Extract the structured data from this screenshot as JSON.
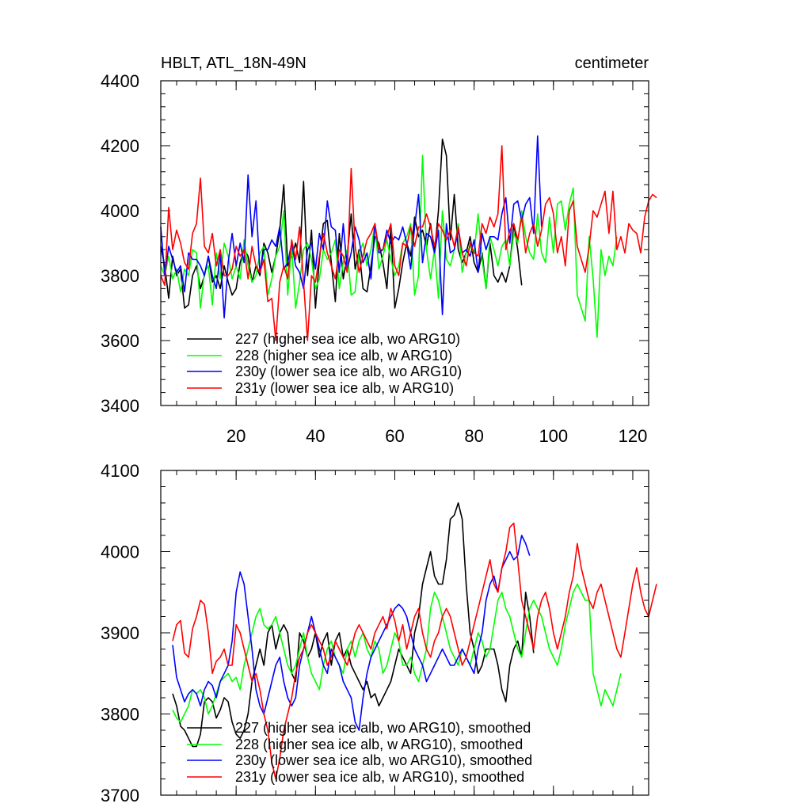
{
  "colors": {
    "s227": "#000000",
    "s228": "#00ff00",
    "s230y": "#0000ff",
    "s231y": "#ff0000"
  },
  "chart_data": [
    {
      "type": "line",
      "title": "HBLT, ATL_18N-49N",
      "units": "centimeter",
      "xlabel": "",
      "ylabel": "",
      "xlim": [
        1,
        124
      ],
      "ylim": [
        3400,
        4400
      ],
      "xticks": [
        20,
        40,
        60,
        80,
        100,
        120
      ],
      "yticks": [
        3400,
        3600,
        3800,
        4000,
        4200,
        4400
      ],
      "legend_position": "bottom-left",
      "series": [
        {
          "name": "227 (higher sea ice alb, wo ARG10)",
          "color_key": "s227",
          "x_start": 1,
          "values": [
            3890,
            3830,
            3730,
            3860,
            3800,
            3820,
            3700,
            3710,
            3800,
            3830,
            3760,
            3800,
            3860,
            3780,
            3800,
            3760,
            3830,
            3780,
            3740,
            3760,
            3840,
            3880,
            3860,
            3780,
            3830,
            3800,
            3900,
            3870,
            3810,
            3860,
            3940,
            4080,
            3830,
            3860,
            3900,
            3840,
            4090,
            3800,
            3940,
            3700,
            3850,
            3960,
            3970,
            3840,
            3720,
            3930,
            3790,
            3860,
            3990,
            3820,
            3880,
            3760,
            3750,
            3830,
            3920,
            3900,
            3840,
            3760,
            3950,
            3700,
            3760,
            3840,
            3900,
            3860,
            3980,
            3920,
            3940,
            3890,
            3960,
            3870,
            4000,
            4220,
            4170,
            3910,
            4050,
            3880,
            3840,
            3870,
            3920,
            3840,
            3810,
            3870,
            3760,
            3900,
            3800,
            3780,
            3810,
            3780,
            3830,
            3960,
            3880,
            3770
          ]
        },
        {
          "name": "228 (higher sea ice alb, w ARG10)",
          "color_key": "s228",
          "x_start": 1,
          "values": [
            3830,
            3800,
            3860,
            3790,
            3820,
            3750,
            3820,
            3800,
            3880,
            3870,
            3700,
            3810,
            3830,
            3710,
            3870,
            3790,
            3900,
            3860,
            3790,
            3830,
            3790,
            3910,
            3830,
            3780,
            3800,
            3870,
            3890,
            3740,
            3790,
            3860,
            3890,
            4000,
            3740,
            3890,
            3700,
            3780,
            3880,
            3900,
            3850,
            3760,
            3790,
            3880,
            3850,
            3870,
            3910,
            3760,
            3840,
            3880,
            3740,
            3750,
            3870,
            3900,
            3830,
            3880,
            3960,
            3820,
            3860,
            3910,
            3850,
            3800,
            3830,
            3900,
            3920,
            3960,
            3740,
            3800,
            4170,
            3880,
            3790,
            3880,
            3730,
            4000,
            3850,
            3830,
            3880,
            3960,
            3810,
            3870,
            3890,
            3870,
            3990,
            3850,
            3760,
            3920,
            3880,
            3830,
            3890,
            3910,
            3830,
            3930,
            3900,
            4000,
            3920,
            3870,
            3850,
            3990,
            3870,
            3840,
            3980,
            3870,
            4020,
            4030,
            3940,
            4020,
            4070,
            3740,
            3700,
            3660,
            3920,
            3790,
            3610,
            3880,
            3800,
            3860,
            3830,
            3920
          ]
        },
        {
          "name": "230y (lower sea ice alb, wo ARG10)",
          "color_key": "s230y",
          "x_start": 1,
          "values": [
            3950,
            3800,
            3890,
            3850,
            3810,
            3830,
            3750,
            3870,
            3850,
            3850,
            3830,
            3800,
            3860,
            3800,
            3760,
            3870,
            3670,
            3840,
            3930,
            3830,
            3900,
            3840,
            4110,
            3920,
            4030,
            3810,
            3880,
            3880,
            3910,
            3890,
            3950,
            3820,
            3840,
            3900,
            3830,
            3810,
            3760,
            3880,
            3900,
            3820,
            3930,
            3880,
            4030,
            3950,
            3940,
            3810,
            3960,
            3820,
            3870,
            3950,
            3910,
            3840,
            3870,
            3790,
            3960,
            3870,
            3880,
            3940,
            3900,
            3920,
            3910,
            3950,
            3900,
            3820,
            3950,
            4050,
            3840,
            3930,
            3920,
            3870,
            3940,
            3680,
            3960,
            3870,
            3880,
            3940,
            3870,
            3880,
            3860,
            3910,
            3810,
            3930,
            3880,
            3920,
            3920,
            3910,
            3990,
            4040,
            3900,
            4020,
            4030,
            3970,
            4020,
            4040,
            3930,
            4230,
            3950
          ]
        },
        {
          "name": "231y (lower sea ice alb, w ARG10)",
          "color_key": "s231y",
          "x_start": 1,
          "values": [
            3800,
            3770,
            4010,
            3880,
            3940,
            3900,
            3840,
            3820,
            3930,
            3960,
            4100,
            3890,
            3870,
            3930,
            3830,
            3880,
            3800,
            3800,
            3820,
            3890,
            3860,
            3880,
            3790,
            3890,
            3830,
            3810,
            3850,
            3720,
            3730,
            3600,
            3780,
            3830,
            3790,
            3910,
            3850,
            3950,
            3780,
            3600,
            3800,
            3780,
            3860,
            3930,
            3870,
            3830,
            3790,
            3880,
            3860,
            3810,
            4130,
            3890,
            3810,
            3860,
            3910,
            3930,
            3960,
            3880,
            3880,
            3920,
            3960,
            3830,
            3800,
            3900,
            3890,
            3950,
            3890,
            3950,
            3950,
            3990,
            3950,
            3890,
            3960,
            3940,
            3910,
            3940,
            3890,
            3950,
            3870,
            3830,
            3900,
            3870,
            3860,
            3960,
            3930,
            3980,
            3950,
            3990,
            4200,
            3880,
            3940,
            3960,
            3910,
            3980,
            3870,
            3930,
            3960,
            3890,
            3940,
            4020,
            4040,
            3990,
            3870,
            3920,
            3830,
            4000,
            4030,
            3890,
            3850,
            3810,
            3890,
            4000,
            3980,
            4020,
            4060,
            3930,
            4060,
            3880,
            3920,
            3870,
            3960,
            3940,
            3930,
            3870,
            3980,
            4030,
            4050,
            4040
          ]
        }
      ]
    },
    {
      "type": "line",
      "title": "",
      "xlabel": "",
      "ylabel": "",
      "xlim": [
        1,
        124
      ],
      "ylim": [
        3700,
        4100
      ],
      "xticks": [
        20,
        40,
        60,
        80,
        100,
        120
      ],
      "yticks": [
        3700,
        3800,
        3900,
        4000,
        4100
      ],
      "legend_position": "bottom-left",
      "series": [
        {
          "name": "227 (higher sea ice alb, wo ARG10), smoothed",
          "color_key": "s227",
          "x_start": 4,
          "values": [
            3825,
            3810,
            3785,
            3780,
            3770,
            3760,
            3760,
            3775,
            3815,
            3820,
            3815,
            3795,
            3805,
            3820,
            3815,
            3790,
            3775,
            3770,
            3780,
            3800,
            3840,
            3860,
            3880,
            3860,
            3900,
            3910,
            3880,
            3900,
            3910,
            3900,
            3850,
            3840,
            3900,
            3890,
            3870,
            3880,
            3900,
            3870,
            3890,
            3900,
            3860,
            3890,
            3900,
            3870,
            3880,
            3860,
            3850,
            3840,
            3830,
            3840,
            3820,
            3825,
            3810,
            3820,
            3830,
            3840,
            3860,
            3880,
            3870,
            3860,
            3850,
            3900,
            3920,
            3960,
            3980,
            4000,
            3970,
            3960,
            3960,
            3990,
            4040,
            4045,
            4060,
            4040,
            3960,
            3900,
            3880,
            3850,
            3860,
            3880,
            3880,
            3880,
            3860,
            3830,
            3815,
            3860,
            3880,
            3890,
            3870,
            3950,
            3920,
            3875
          ]
        },
        {
          "name": "228 (higher sea ice alb, w ARG10), smoothed",
          "color_key": "s228",
          "x_start": 4,
          "values": [
            3805,
            3795,
            3790,
            3800,
            3810,
            3830,
            3825,
            3830,
            3820,
            3800,
            3810,
            3825,
            3840,
            3845,
            3850,
            3840,
            3845,
            3830,
            3860,
            3880,
            3900,
            3920,
            3930,
            3910,
            3905,
            3910,
            3920,
            3900,
            3880,
            3860,
            3850,
            3860,
            3880,
            3900,
            3870,
            3850,
            3840,
            3830,
            3860,
            3880,
            3890,
            3870,
            3860,
            3850,
            3880,
            3890,
            3870,
            3890,
            3900,
            3880,
            3870,
            3890,
            3880,
            3850,
            3860,
            3880,
            3900,
            3890,
            3860,
            3860,
            3870,
            3850,
            3840,
            3860,
            3880,
            3930,
            3950,
            3940,
            3920,
            3900,
            3880,
            3870,
            3860,
            3880,
            3870,
            3860,
            3880,
            3900,
            3890,
            3870,
            3880,
            3910,
            3940,
            3950,
            3930,
            3920,
            3900,
            3880,
            3870,
            3900,
            3930,
            3940,
            3930,
            3920,
            3900,
            3880,
            3870,
            3860,
            3880,
            3910,
            3930,
            3950,
            3960,
            3950,
            3940,
            3940,
            3850,
            3830,
            3810,
            3830,
            3820,
            3810,
            3830,
            3850
          ]
        },
        {
          "name": "230y (lower sea ice alb, wo ARG10), smoothed",
          "color_key": "s230y",
          "x_start": 4,
          "values": [
            3885,
            3845,
            3830,
            3815,
            3825,
            3830,
            3825,
            3810,
            3830,
            3840,
            3835,
            3820,
            3840,
            3850,
            3860,
            3890,
            3950,
            3975,
            3960,
            3920,
            3880,
            3830,
            3810,
            3800,
            3820,
            3840,
            3860,
            3870,
            3840,
            3820,
            3810,
            3820,
            3860,
            3880,
            3900,
            3920,
            3900,
            3880,
            3860,
            3850,
            3880,
            3870,
            3860,
            3840,
            3830,
            3820,
            3790,
            3780,
            3820,
            3850,
            3870,
            3880,
            3890,
            3900,
            3910,
            3920,
            3930,
            3935,
            3930,
            3920,
            3900,
            3880,
            3870,
            3860,
            3840,
            3850,
            3860,
            3870,
            3880,
            3870,
            3860,
            3860,
            3870,
            3880,
            3870,
            3860,
            3850,
            3880,
            3900,
            3940,
            3960,
            3970,
            3950,
            3980,
            3990,
            4000,
            3990,
            3995,
            4020,
            4010,
            3995
          ]
        },
        {
          "name": "231y (lower sea ice alb, w ARG10), smoothed",
          "color_key": "s231y",
          "x_start": 4,
          "values": [
            3890,
            3910,
            3915,
            3875,
            3870,
            3905,
            3920,
            3940,
            3935,
            3900,
            3850,
            3865,
            3870,
            3880,
            3860,
            3860,
            3910,
            3900,
            3880,
            3860,
            3840,
            3850,
            3830,
            3800,
            3780,
            3740,
            3720,
            3745,
            3780,
            3800,
            3820,
            3850,
            3870,
            3880,
            3900,
            3910,
            3900,
            3890,
            3880,
            3860,
            3870,
            3890,
            3880,
            3870,
            3860,
            3880,
            3900,
            3910,
            3900,
            3890,
            3880,
            3900,
            3910,
            3920,
            3905,
            3930,
            3915,
            3890,
            3910,
            3880,
            3900,
            3920,
            3930,
            3900,
            3880,
            3870,
            3890,
            3900,
            3920,
            3930,
            3920,
            3900,
            3880,
            3860,
            3870,
            3890,
            3910,
            3930,
            3950,
            3970,
            3990,
            3960,
            3950,
            3980,
            4000,
            4030,
            4035,
            3990,
            3940,
            3920,
            3900,
            3880,
            3920,
            3940,
            3950,
            3930,
            3900,
            3880,
            3900,
            3920,
            3950,
            3970,
            4010,
            3980,
            3960,
            3940,
            3930,
            3950,
            3960,
            3940,
            3920,
            3900,
            3880,
            3870,
            3900,
            3930,
            3960,
            3980,
            3950,
            3930,
            3920,
            3940,
            3960
          ]
        }
      ]
    }
  ]
}
